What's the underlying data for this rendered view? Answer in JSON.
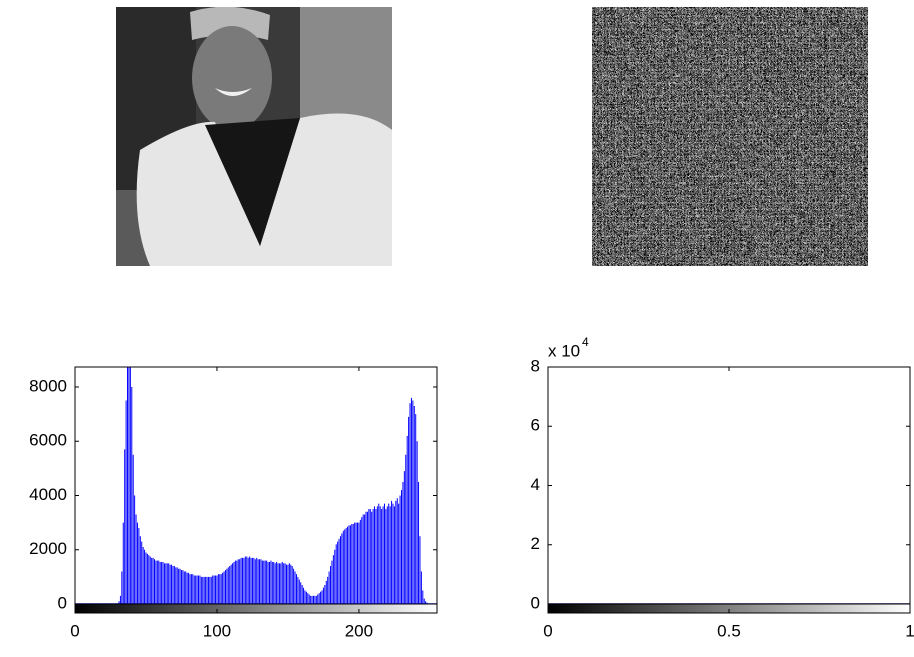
{
  "chart_data": [
    {
      "type": "histogram",
      "x": [
        0,
        1,
        2,
        3,
        4,
        5,
        6,
        7,
        8,
        9,
        10,
        11,
        12,
        13,
        14,
        15,
        16,
        17,
        18,
        19,
        20,
        21,
        22,
        23,
        24,
        25,
        26,
        27,
        28,
        29,
        30,
        31,
        32,
        33,
        34,
        35,
        36,
        37,
        38,
        39,
        40,
        41,
        42,
        43,
        44,
        45,
        46,
        47,
        48,
        49,
        50,
        51,
        52,
        53,
        54,
        55,
        56,
        57,
        58,
        59,
        60,
        61,
        62,
        63,
        64,
        65,
        66,
        67,
        68,
        69,
        70,
        71,
        72,
        73,
        74,
        75,
        76,
        77,
        78,
        79,
        80,
        81,
        82,
        83,
        84,
        85,
        86,
        87,
        88,
        89,
        90,
        91,
        92,
        93,
        94,
        95,
        96,
        97,
        98,
        99,
        100,
        101,
        102,
        103,
        104,
        105,
        106,
        107,
        108,
        109,
        110,
        111,
        112,
        113,
        114,
        115,
        116,
        117,
        118,
        119,
        120,
        121,
        122,
        123,
        124,
        125,
        126,
        127,
        128,
        129,
        130,
        131,
        132,
        133,
        134,
        135,
        136,
        137,
        138,
        139,
        140,
        141,
        142,
        143,
        144,
        145,
        146,
        147,
        148,
        149,
        150,
        151,
        152,
        153,
        154,
        155,
        156,
        157,
        158,
        159,
        160,
        161,
        162,
        163,
        164,
        165,
        166,
        167,
        168,
        169,
        170,
        171,
        172,
        173,
        174,
        175,
        176,
        177,
        178,
        179,
        180,
        181,
        182,
        183,
        184,
        185,
        186,
        187,
        188,
        189,
        190,
        191,
        192,
        193,
        194,
        195,
        196,
        197,
        198,
        199,
        200,
        201,
        202,
        203,
        204,
        205,
        206,
        207,
        208,
        209,
        210,
        211,
        212,
        213,
        214,
        215,
        216,
        217,
        218,
        219,
        220,
        221,
        222,
        223,
        224,
        225,
        226,
        227,
        228,
        229,
        230,
        231,
        232,
        233,
        234,
        235,
        236,
        237,
        238,
        239,
        240,
        241,
        242,
        243,
        244,
        245,
        246,
        247,
        248,
        249,
        250,
        251,
        252,
        253,
        254,
        255
      ],
      "values": [
        0,
        0,
        0,
        0,
        0,
        0,
        0,
        0,
        0,
        0,
        0,
        0,
        0,
        0,
        0,
        0,
        0,
        0,
        0,
        0,
        0,
        0,
        0,
        0,
        0,
        0,
        0,
        0,
        0,
        0,
        0,
        100,
        300,
        1200,
        3000,
        5700,
        7500,
        8737,
        8737,
        8737,
        8000,
        5500,
        4000,
        3300,
        3000,
        2800,
        2500,
        2300,
        2100,
        2000,
        1900,
        1850,
        1800,
        1750,
        1700,
        1700,
        1650,
        1600,
        1600,
        1600,
        1550,
        1550,
        1550,
        1500,
        1500,
        1500,
        1500,
        1450,
        1450,
        1400,
        1400,
        1350,
        1350,
        1300,
        1300,
        1250,
        1250,
        1200,
        1200,
        1150,
        1150,
        1100,
        1100,
        1100,
        1050,
        1050,
        1050,
        1050,
        1050,
        1000,
        1000,
        1000,
        1000,
        1000,
        1000,
        1000,
        1000,
        1050,
        1050,
        1050,
        1050,
        1100,
        1100,
        1100,
        1150,
        1200,
        1250,
        1300,
        1350,
        1400,
        1450,
        1500,
        1550,
        1600,
        1600,
        1650,
        1650,
        1700,
        1700,
        1700,
        1750,
        1750,
        1700,
        1750,
        1700,
        1700,
        1700,
        1650,
        1700,
        1650,
        1650,
        1650,
        1600,
        1600,
        1600,
        1600,
        1550,
        1550,
        1600,
        1550,
        1550,
        1500,
        1550,
        1500,
        1500,
        1500,
        1550,
        1500,
        1500,
        1450,
        1450,
        1500,
        1450,
        1400,
        1300,
        1200,
        1100,
        1000,
        900,
        800,
        700,
        600,
        500,
        450,
        400,
        350,
        300,
        300,
        300,
        300,
        300,
        350,
        400,
        450,
        500,
        600,
        700,
        850,
        1000,
        1200,
        1400,
        1600,
        1800,
        2000,
        2200,
        2300,
        2400,
        2500,
        2600,
        2700,
        2750,
        2800,
        2850,
        2900,
        2900,
        2950,
        2950,
        3000,
        3000,
        3000,
        3000,
        3100,
        3200,
        3300,
        3300,
        3400,
        3400,
        3500,
        3500,
        3400,
        3500,
        3600,
        3500,
        3600,
        3700,
        3600,
        3500,
        3600,
        3700,
        3500,
        3600,
        3700,
        3600,
        3800,
        3700,
        3600,
        3800,
        3900,
        3700,
        4000,
        4200,
        4500,
        4900,
        5500,
        6200,
        6900,
        7400,
        7600,
        7500,
        7300,
        7000,
        6000,
        4500,
        2500,
        1200,
        500,
        200,
        100,
        50,
        0,
        0,
        0,
        0,
        0,
        0,
        0
      ],
      "color": "#0000ff",
      "xlim": [
        0,
        255
      ],
      "ylim": [
        0,
        8737
      ],
      "xticks": [
        0,
        100,
        200
      ],
      "yticks": [
        0,
        2000,
        4000,
        6000,
        8000
      ]
    },
    {
      "type": "histogram",
      "x": [
        0,
        1
      ],
      "values": [
        0,
        80000
      ],
      "color": "#00008b",
      "xlim": [
        0,
        1
      ],
      "ylim": [
        0,
        80000
      ],
      "xticks": [
        0,
        0.5,
        1
      ],
      "yticks": [
        0,
        {
          "value": 20000,
          "label": "2"
        },
        {
          "value": 40000,
          "label": "4"
        },
        {
          "value": 60000,
          "label": "6"
        },
        {
          "value": 80000,
          "label": "8"
        }
      ],
      "y_exponent": {
        "base": "x 10",
        "power": "4"
      }
    }
  ]
}
